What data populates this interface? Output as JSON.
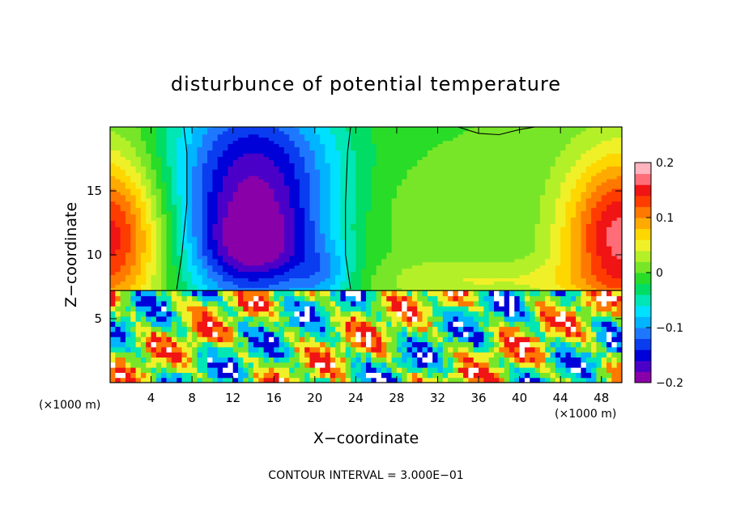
{
  "chart_data": {
    "type": "heatmap",
    "title": "disturbunce of potential temperature",
    "xlabel": "X−coordinate",
    "ylabel": "Z−coordinate",
    "x_unit": "(×1000 m)",
    "x_unit_right": "(×1000 m)",
    "footer": "CONTOUR INTERVAL = 3.000E−01",
    "xlim": [
      0,
      50
    ],
    "ylim": [
      0,
      20
    ],
    "x_ticks": [
      "4",
      "8",
      "12",
      "16",
      "20",
      "24",
      "28",
      "32",
      "36",
      "40",
      "44",
      "48"
    ],
    "y_ticks": [
      "5",
      "10",
      "15"
    ],
    "colorbar": {
      "range": [
        -0.2,
        0.2
      ],
      "tick_labels": [
        "0.2",
        "0.1",
        "0",
        "−0.1",
        "−0.2"
      ],
      "colors": [
        "#8a00a8",
        "#4b00c8",
        "#0000d8",
        "#0a3cf0",
        "#1e78ff",
        "#00b4ff",
        "#00e0ff",
        "#00e6b4",
        "#00dc64",
        "#28dc28",
        "#78e628",
        "#b4f028",
        "#f0f028",
        "#ffd700",
        "#ffaa00",
        "#ff7800",
        "#ff3c00",
        "#f01414",
        "#ff6e78",
        "#ffb4be"
      ]
    },
    "fields": [
      {
        "cx": 14,
        "cz": 14.5,
        "sx": 6.0,
        "sz": 6.5,
        "amp": -0.185
      },
      {
        "cx": 14,
        "cz": 10.5,
        "sx": 3.5,
        "sz": 2.0,
        "amp": -0.06
      },
      {
        "cx": 0,
        "cz": 11.5,
        "sx": 4.0,
        "sz": 4.5,
        "amp": 0.16
      },
      {
        "cx": 50,
        "cz": 11.5,
        "sx": 4.0,
        "sz": 4.5,
        "amp": 0.17
      },
      {
        "cx": 36,
        "cz": 8,
        "sx": 8.0,
        "sz": 1.2,
        "amp": 0.04
      },
      {
        "cx": 28,
        "cz": 13,
        "sx": 4.0,
        "sz": 3.0,
        "amp": 0.015
      },
      {
        "cx": 21,
        "cz": 8.5,
        "sx": 2.0,
        "sz": 1.5,
        "amp": -0.05
      }
    ],
    "lower_layer": {
      "z_top": 7.2,
      "values": [
        -0.2,
        -0.15,
        -0.1,
        -0.05,
        0,
        0.05,
        0.1,
        0.15,
        0.2
      ]
    }
  }
}
